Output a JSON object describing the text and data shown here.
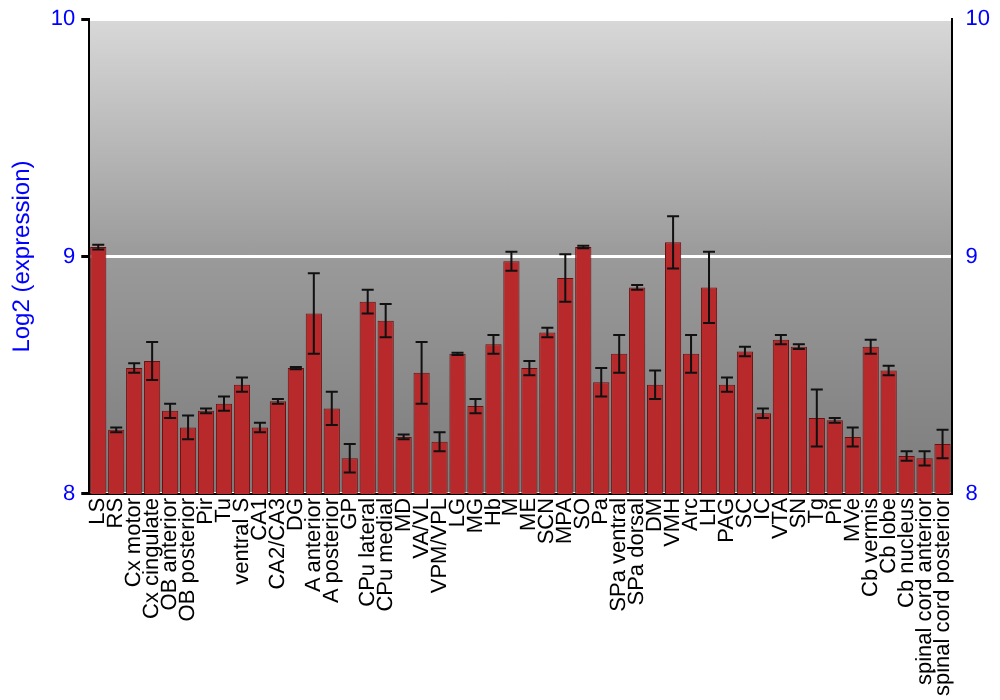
{
  "chart_data": {
    "type": "bar",
    "ylabel": "Log2 (expression)",
    "categories": [
      "LS",
      "RS",
      "Cx motor",
      "Cx cingulate",
      "OB anterior",
      "OB posterior",
      "Pir",
      "Tu",
      "ventral S",
      "CA1",
      "CA2/CA3",
      "DG",
      "A anterior",
      "A posterior",
      "GP",
      "CPu lateral",
      "CPu medial",
      "MD",
      "VA/VL",
      "VPM/VPL",
      "LG",
      "MG",
      "Hb",
      "M",
      "ME",
      "SCN",
      "MPA",
      "SO",
      "Pa",
      "SPa ventral",
      "SPa dorsal",
      "DM",
      "VMH",
      "Arc",
      "LH",
      "PAG",
      "SC",
      "IC",
      "VTA",
      "SN",
      "Tg",
      "Pn",
      "MVe",
      "Cb vermis",
      "Cb lobe",
      "Cb nucleus",
      "spinal cord anterior",
      "spinal cord posterior"
    ],
    "values": [
      9.04,
      8.27,
      8.53,
      8.56,
      8.35,
      8.28,
      8.35,
      8.38,
      8.46,
      8.28,
      8.39,
      8.53,
      8.76,
      8.36,
      8.15,
      8.81,
      8.73,
      8.24,
      8.51,
      8.22,
      8.59,
      8.37,
      8.63,
      8.98,
      8.53,
      8.68,
      8.91,
      9.04,
      8.47,
      8.59,
      8.87,
      8.46,
      9.06,
      8.59,
      8.87,
      8.46,
      8.6,
      8.34,
      8.65,
      8.62,
      8.32,
      8.31,
      8.24,
      8.62,
      8.52,
      8.16,
      8.15,
      8.21
    ],
    "errors": [
      0.01,
      0.01,
      0.02,
      0.08,
      0.03,
      0.05,
      0.01,
      0.03,
      0.03,
      0.02,
      0.01,
      0.005,
      0.17,
      0.07,
      0.06,
      0.05,
      0.07,
      0.01,
      0.13,
      0.04,
      0.005,
      0.03,
      0.04,
      0.04,
      0.03,
      0.02,
      0.1,
      0.005,
      0.06,
      0.08,
      0.01,
      0.06,
      0.11,
      0.08,
      0.15,
      0.03,
      0.02,
      0.02,
      0.02,
      0.01,
      0.12,
      0.01,
      0.04,
      0.03,
      0.02,
      0.02,
      0.03,
      0.06
    ],
    "color": "#b8292b",
    "ylim": [
      8,
      10
    ],
    "yticks": [
      8,
      9,
      10
    ],
    "y2lim": [
      8,
      10
    ],
    "y2ticks": [
      8,
      9,
      10
    ],
    "grid": "y",
    "legend": false
  }
}
